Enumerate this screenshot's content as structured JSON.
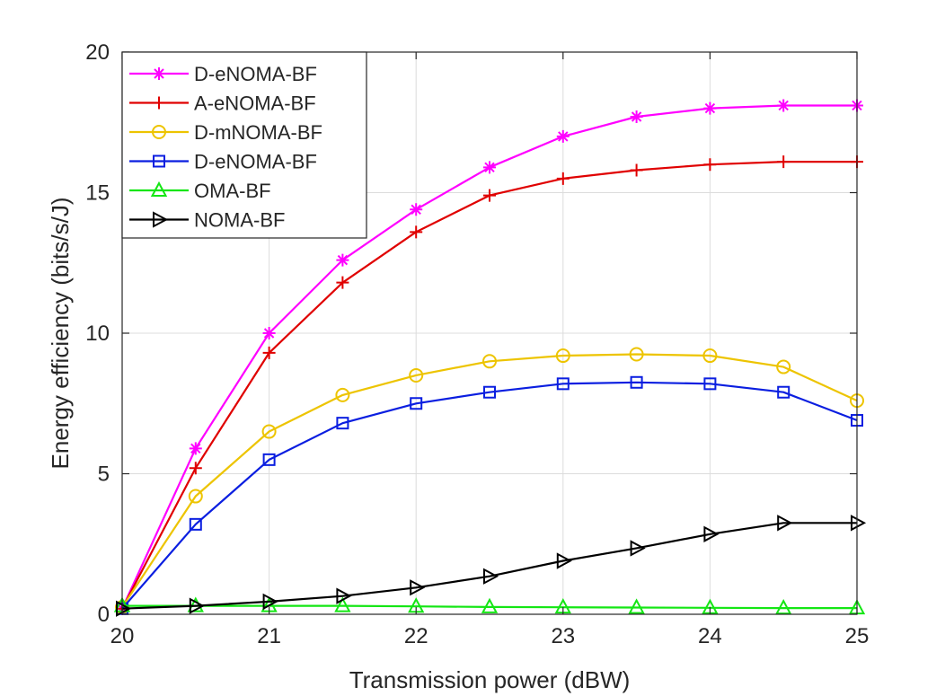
{
  "chart_data": {
    "type": "line",
    "title": "",
    "xlabel": "Transmission power (dBW)",
    "ylabel": "Energy efficiency (bits/s/J)",
    "xlim": [
      20,
      25
    ],
    "ylim": [
      0,
      20
    ],
    "xticks": [
      20,
      21,
      22,
      23,
      24,
      25
    ],
    "yticks": [
      0,
      5,
      10,
      15,
      20
    ],
    "grid": true,
    "legend_position": "top-left",
    "x": [
      20,
      20.5,
      21,
      21.5,
      22,
      22.5,
      23,
      23.5,
      24,
      24.5,
      25
    ],
    "series": [
      {
        "name": "D-eNOMA-BF",
        "color": "#ff00ff",
        "marker": "asterisk",
        "values": [
          0.2,
          5.9,
          10.0,
          12.6,
          14.4,
          15.9,
          17.0,
          17.7,
          18.0,
          18.1,
          18.1
        ]
      },
      {
        "name": "A-eNOMA-BF",
        "color": "#e00000",
        "marker": "plus",
        "values": [
          0.2,
          5.2,
          9.3,
          11.8,
          13.6,
          14.9,
          15.5,
          15.8,
          16.0,
          16.1,
          16.1
        ]
      },
      {
        "name": "D-mNOMA-BF",
        "color": "#edc400",
        "marker": "circle",
        "values": [
          0.25,
          4.2,
          6.5,
          7.8,
          8.5,
          9.0,
          9.2,
          9.25,
          9.2,
          8.8,
          7.6
        ]
      },
      {
        "name": "D-eNOMA-BF",
        "color": "#0a1ee0",
        "marker": "square",
        "values": [
          0.2,
          3.2,
          5.5,
          6.8,
          7.5,
          7.9,
          8.2,
          8.25,
          8.2,
          7.9,
          6.9
        ]
      },
      {
        "name": "OMA-BF",
        "color": "#14e614",
        "marker": "triangle-up",
        "values": [
          0.3,
          0.3,
          0.3,
          0.3,
          0.28,
          0.26,
          0.25,
          0.24,
          0.23,
          0.22,
          0.22
        ]
      },
      {
        "name": "NOMA-BF",
        "color": "#000000",
        "marker": "triangle-right",
        "values": [
          0.2,
          0.3,
          0.45,
          0.65,
          0.95,
          1.35,
          1.9,
          2.35,
          2.85,
          3.25,
          3.25
        ]
      }
    ]
  }
}
